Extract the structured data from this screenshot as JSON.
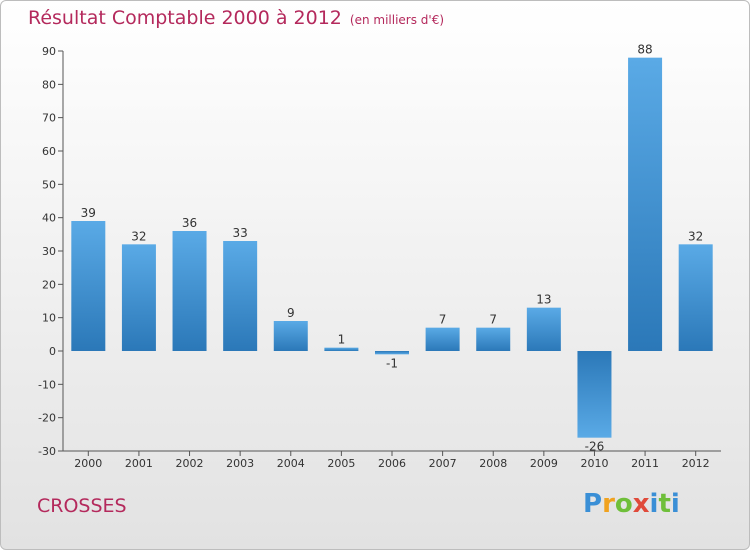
{
  "title": "Résultat Comptable 2000 à 2012",
  "subtitle": "(en milliers d'€)",
  "place": "CROSSES",
  "logo": {
    "text": "Proxiti",
    "letters": [
      "P",
      "r",
      "o",
      "x",
      "i",
      "t",
      "i"
    ]
  },
  "colors": {
    "title": "#b4295c",
    "bar_light": "#5aaae6",
    "bar_dark": "#2b78b8"
  },
  "chart_data": {
    "type": "bar",
    "title": "Résultat Comptable 2000 à 2012",
    "subtitle": "(en milliers d'€)",
    "xlabel": "",
    "ylabel": "",
    "categories": [
      "2000",
      "2001",
      "2002",
      "2003",
      "2004",
      "2005",
      "2006",
      "2007",
      "2008",
      "2009",
      "2010",
      "2011",
      "2012"
    ],
    "values": [
      39,
      32,
      36,
      33,
      9,
      1,
      -1,
      7,
      7,
      13,
      -26,
      88,
      32
    ],
    "labels": [
      "39",
      "32",
      "36",
      "33",
      "9",
      "1",
      "-1",
      "7",
      "7",
      "13",
      "-26",
      "88",
      "32"
    ],
    "ylim": [
      -30,
      90
    ],
    "yticks": [
      -30,
      -20,
      -10,
      0,
      10,
      20,
      30,
      40,
      50,
      60,
      70,
      80,
      90
    ],
    "grid": false
  }
}
